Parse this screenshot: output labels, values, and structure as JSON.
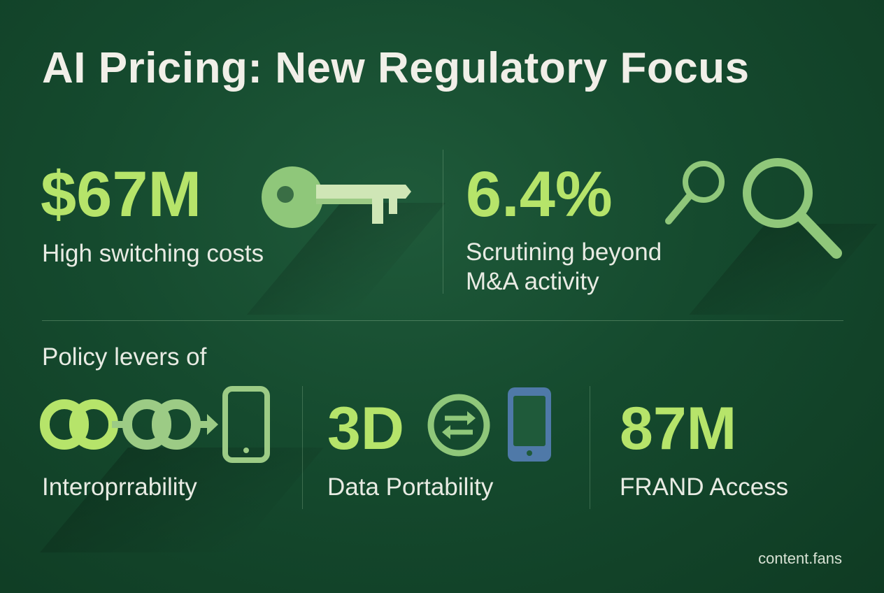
{
  "title": "AI Pricing: New Regulatory Focus",
  "top": [
    {
      "stat": "$67M",
      "caption": "High switching costs",
      "icon": "key-icon"
    },
    {
      "stat": "6.4%",
      "caption_lines": [
        "Scrutining beyond",
        "M&A activity"
      ],
      "icon": "magnifier-icon"
    }
  ],
  "policy_heading": "Policy levers of",
  "levers": [
    {
      "caption": "Interoprrability",
      "icon": "chain-link-to-phone-icon"
    },
    {
      "stat": "3D",
      "caption": "Data Portability",
      "icon": "swap-arrows-phone-icon"
    },
    {
      "stat": "87M",
      "caption": "FRAND Access"
    }
  ],
  "footer": {
    "watermark": "content.fans"
  },
  "colors": {
    "background": "#154a2e",
    "accent_green": "#b6e46a",
    "icon_green": "#8fc77a",
    "phone_blue": "#4f79a8",
    "text": "#f1efe8"
  }
}
